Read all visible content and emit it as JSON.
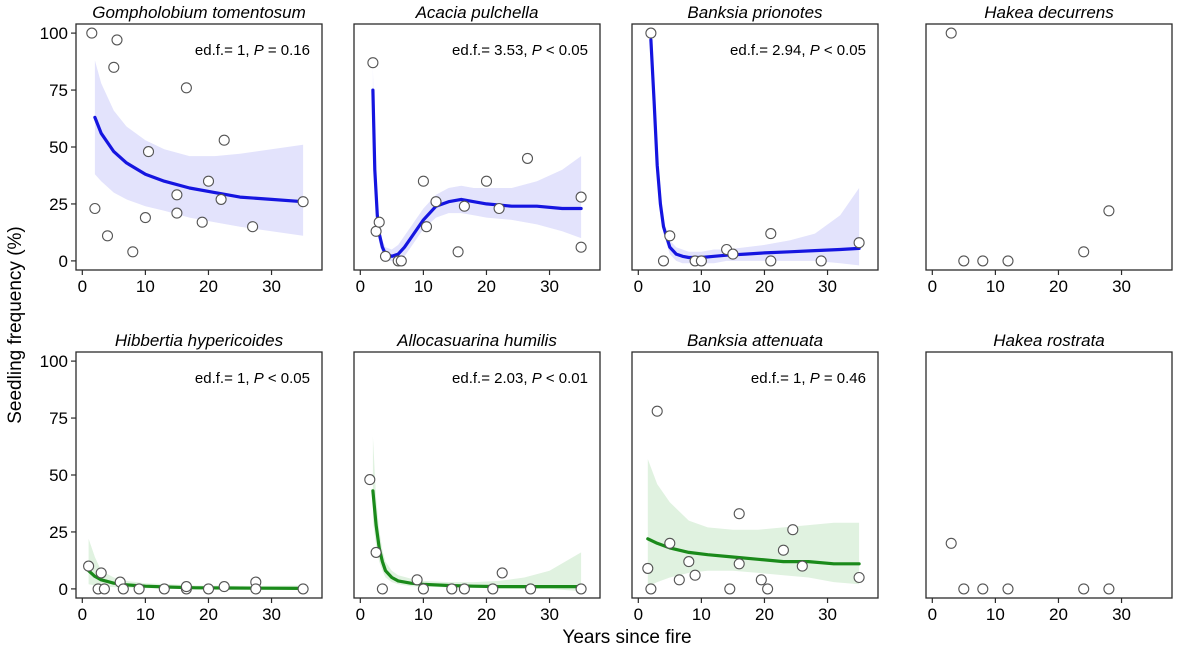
{
  "figure": {
    "xlabel": "Years since fire",
    "ylabel": "Seedling frequency (%)"
  },
  "chart_data": [
    {
      "type": "scatter",
      "title": "Gompholobium tomentosum",
      "annotation": {
        "edf": "ed.f.= 1,",
        "p_label": "P",
        "p_value": "= 0.16"
      },
      "xlim": [
        -1,
        38
      ],
      "ylim": [
        -4,
        104
      ],
      "xticks": [
        0,
        10,
        20,
        30
      ],
      "yticks": [
        0,
        25,
        50,
        75,
        100
      ],
      "points": [
        [
          1.5,
          100
        ],
        [
          2,
          23
        ],
        [
          4,
          11
        ],
        [
          5,
          85
        ],
        [
          5.5,
          97
        ],
        [
          8,
          4
        ],
        [
          10,
          19
        ],
        [
          10.5,
          48
        ],
        [
          15,
          21
        ],
        [
          15,
          29
        ],
        [
          16.5,
          76
        ],
        [
          19,
          17
        ],
        [
          20,
          35
        ],
        [
          22,
          27
        ],
        [
          22.5,
          53
        ],
        [
          27,
          15
        ],
        [
          35,
          26
        ]
      ],
      "fit": {
        "color": "#1515e0",
        "band": "#e3e3fc",
        "x": [
          2,
          3,
          5,
          7,
          10,
          13,
          17,
          21,
          25,
          30,
          35
        ],
        "y": [
          63,
          56,
          48,
          43,
          38,
          35,
          32,
          30,
          28,
          27,
          26
        ],
        "lower": [
          38,
          35,
          30,
          27,
          24,
          22,
          19,
          17,
          15,
          13,
          11
        ],
        "upper": [
          88,
          78,
          66,
          59,
          53,
          49,
          46,
          46,
          47,
          49,
          51
        ]
      }
    },
    {
      "type": "scatter",
      "title": "Acacia pulchella",
      "annotation": {
        "edf": "ed.f.= 3.53,",
        "p_label": "P",
        "p_value": "< 0.05"
      },
      "xlim": [
        -1,
        38
      ],
      "ylim": [
        -4,
        104
      ],
      "xticks": [
        0,
        10,
        20,
        30
      ],
      "yticks": [
        0,
        25,
        50,
        75,
        100
      ],
      "points": [
        [
          2,
          87
        ],
        [
          2.5,
          13
        ],
        [
          3,
          17
        ],
        [
          4,
          2
        ],
        [
          6,
          0
        ],
        [
          6.5,
          0
        ],
        [
          10,
          35
        ],
        [
          10.5,
          15
        ],
        [
          12,
          26
        ],
        [
          15.5,
          4
        ],
        [
          16.5,
          24
        ],
        [
          20,
          35
        ],
        [
          22,
          23
        ],
        [
          26.5,
          45
        ],
        [
          35,
          28
        ],
        [
          35,
          6
        ]
      ],
      "fit": {
        "color": "#1515e0",
        "band": "#e3e3fc",
        "x": [
          2,
          2.3,
          2.7,
          3,
          3.5,
          4,
          5,
          6,
          7,
          8,
          9,
          10,
          12,
          14,
          16,
          18,
          20,
          24,
          28,
          32,
          35
        ],
        "y": [
          75,
          40,
          20,
          12,
          6,
          3,
          2,
          3,
          6,
          10,
          14,
          18,
          24,
          26,
          27,
          26,
          25,
          24,
          24,
          23,
          23
        ],
        "lower": [
          65,
          33,
          15,
          8,
          3,
          0,
          0,
          0,
          2,
          6,
          10,
          14,
          19,
          21,
          21,
          20,
          19,
          18,
          16,
          13,
          10
        ],
        "upper": [
          85,
          47,
          25,
          16,
          9,
          6,
          5,
          7,
          11,
          15,
          19,
          23,
          29,
          32,
          33,
          32,
          32,
          32,
          35,
          40,
          46
        ]
      }
    },
    {
      "type": "scatter",
      "title": "Banksia prionotes",
      "annotation": {
        "edf": "ed.f.= 2.94,",
        "p_label": "P",
        "p_value": "< 0.05"
      },
      "xlim": [
        -1,
        38
      ],
      "ylim": [
        -4,
        104
      ],
      "xticks": [
        0,
        10,
        20,
        30
      ],
      "yticks": [
        0,
        25,
        50,
        75,
        100
      ],
      "points": [
        [
          2,
          100
        ],
        [
          4,
          0
        ],
        [
          5,
          11
        ],
        [
          9,
          0
        ],
        [
          10,
          0
        ],
        [
          14,
          5
        ],
        [
          15,
          3
        ],
        [
          21,
          12
        ],
        [
          21,
          0
        ],
        [
          29,
          0
        ],
        [
          35,
          8
        ]
      ],
      "fit": {
        "color": "#1515e0",
        "band": "#e3e3fc",
        "x": [
          2,
          2.5,
          3,
          3.5,
          4,
          5,
          6,
          7,
          8,
          9,
          10,
          12,
          14,
          17,
          20,
          24,
          28,
          32,
          35
        ],
        "y": [
          97,
          70,
          42,
          25,
          15,
          6,
          3,
          2,
          1.5,
          1.5,
          1.5,
          2,
          2.5,
          3,
          3.5,
          4,
          4.5,
          5,
          5.5
        ],
        "lower": [
          91,
          64,
          37,
          21,
          12,
          3,
          0,
          -1,
          -1,
          -1,
          -1,
          -1,
          0,
          0,
          0,
          0,
          0,
          -1,
          -2
        ],
        "upper": [
          103,
          76,
          47,
          29,
          18,
          9,
          6,
          5,
          4,
          4,
          4,
          5,
          5,
          6,
          7,
          9,
          12,
          20,
          32
        ]
      }
    },
    {
      "type": "scatter",
      "title": "Hakea decurrens",
      "annotation": null,
      "xlim": [
        -1,
        38
      ],
      "ylim": [
        -4,
        104
      ],
      "xticks": [
        0,
        10,
        20,
        30
      ],
      "yticks": [
        0,
        25,
        50,
        75,
        100
      ],
      "points": [
        [
          3,
          100
        ],
        [
          5,
          0
        ],
        [
          8,
          0
        ],
        [
          12,
          0
        ],
        [
          24,
          4
        ],
        [
          28,
          22
        ]
      ],
      "fit": null
    },
    {
      "type": "scatter",
      "title": "Hibbertia hypericoides",
      "annotation": {
        "edf": "ed.f.= 1,",
        "p_label": "P",
        "p_value": "< 0.05"
      },
      "xlim": [
        -1,
        38
      ],
      "ylim": [
        -4,
        104
      ],
      "xticks": [
        0,
        10,
        20,
        30
      ],
      "yticks": [
        0,
        25,
        50,
        75,
        100
      ],
      "points": [
        [
          1,
          10
        ],
        [
          2.5,
          0
        ],
        [
          3,
          7
        ],
        [
          3.5,
          0
        ],
        [
          6,
          3
        ],
        [
          6.5,
          0
        ],
        [
          9,
          0
        ],
        [
          13,
          0
        ],
        [
          16.5,
          0
        ],
        [
          16.5,
          1
        ],
        [
          20,
          0
        ],
        [
          22.5,
          1
        ],
        [
          27.5,
          3
        ],
        [
          27.5,
          0
        ],
        [
          35,
          0
        ]
      ],
      "fit": {
        "color": "#1a8a1a",
        "band": "#e0f2e0",
        "x": [
          1,
          2,
          3,
          5,
          7,
          10,
          14,
          18,
          23,
          28,
          35
        ],
        "y": [
          8,
          5.5,
          4,
          2.5,
          1.8,
          1.2,
          0.8,
          0.5,
          0.4,
          0.3,
          0.2
        ],
        "lower": [
          2,
          1.5,
          1,
          0.8,
          0.5,
          0.3,
          0.2,
          0.1,
          0,
          0,
          0
        ],
        "upper": [
          22,
          14,
          8,
          5,
          3.5,
          2.5,
          2,
          1.5,
          1.4,
          1.3,
          1.5
        ]
      }
    },
    {
      "type": "scatter",
      "title": "Allocasuarina humilis",
      "annotation": {
        "edf": "ed.f.= 2.03,",
        "p_label": "P",
        "p_value": "< 0.01"
      },
      "xlim": [
        -1,
        38
      ],
      "ylim": [
        -4,
        104
      ],
      "xticks": [
        0,
        10,
        20,
        30
      ],
      "yticks": [
        0,
        25,
        50,
        75,
        100
      ],
      "points": [
        [
          1.5,
          48
        ],
        [
          2.5,
          16
        ],
        [
          3.5,
          0
        ],
        [
          9,
          4
        ],
        [
          10,
          0
        ],
        [
          14.5,
          0
        ],
        [
          16.5,
          0
        ],
        [
          21,
          0
        ],
        [
          22.5,
          7
        ],
        [
          27,
          0
        ],
        [
          35,
          0
        ]
      ],
      "fit": {
        "color": "#1a8a1a",
        "band": "#e0f2e0",
        "x": [
          2,
          2.5,
          3,
          3.5,
          4,
          5,
          6,
          8,
          10,
          14,
          18,
          22,
          26,
          30,
          35
        ],
        "y": [
          43,
          28,
          18,
          12,
          8,
          5,
          3.5,
          2.5,
          2,
          1.5,
          1.2,
          1,
          1,
          1,
          1
        ],
        "lower": [
          30,
          19,
          12,
          8,
          5,
          3,
          2,
          1.2,
          1,
          0.6,
          0.4,
          0.2,
          0,
          0,
          -1
        ],
        "upper": [
          67,
          40,
          26,
          17,
          12,
          8,
          6,
          4.5,
          3.5,
          3,
          3,
          3.5,
          5,
          8,
          16
        ]
      }
    },
    {
      "type": "scatter",
      "title": "Banksia attenuata",
      "annotation": {
        "edf": "ed.f.= 1,",
        "p_label": "P",
        "p_value": "= 0.46"
      },
      "xlim": [
        -1,
        38
      ],
      "ylim": [
        -4,
        104
      ],
      "xticks": [
        0,
        10,
        20,
        30
      ],
      "yticks": [
        0,
        25,
        50,
        75,
        100
      ],
      "points": [
        [
          1.5,
          9
        ],
        [
          2,
          0
        ],
        [
          3,
          78
        ],
        [
          5,
          20
        ],
        [
          6.5,
          4
        ],
        [
          8,
          12
        ],
        [
          9,
          6
        ],
        [
          14.5,
          0
        ],
        [
          16,
          33
        ],
        [
          16,
          11
        ],
        [
          19.5,
          4
        ],
        [
          20.5,
          0
        ],
        [
          23,
          17
        ],
        [
          24.5,
          26
        ],
        [
          26,
          10
        ],
        [
          35,
          5
        ]
      ],
      "fit": {
        "color": "#1a8a1a",
        "band": "#e0f2e0",
        "x": [
          1.5,
          3,
          5,
          8,
          11,
          15,
          19,
          23,
          27,
          31,
          35
        ],
        "y": [
          22,
          20,
          18,
          16,
          15,
          14,
          13,
          12,
          12,
          11,
          11
        ],
        "lower": [
          1,
          3,
          5,
          7,
          8,
          8,
          7,
          6,
          5,
          3,
          2
        ],
        "upper": [
          57,
          46,
          38,
          30,
          27,
          26,
          26,
          27,
          28,
          29,
          29
        ]
      }
    },
    {
      "type": "scatter",
      "title": "Hakea rostrata",
      "annotation": null,
      "xlim": [
        -1,
        38
      ],
      "ylim": [
        -4,
        104
      ],
      "xticks": [
        0,
        10,
        20,
        30
      ],
      "yticks": [
        0,
        25,
        50,
        75,
        100
      ],
      "points": [
        [
          3,
          20
        ],
        [
          5,
          0
        ],
        [
          8,
          0
        ],
        [
          12,
          0
        ],
        [
          24,
          0
        ],
        [
          28,
          0
        ]
      ],
      "fit": null
    }
  ]
}
